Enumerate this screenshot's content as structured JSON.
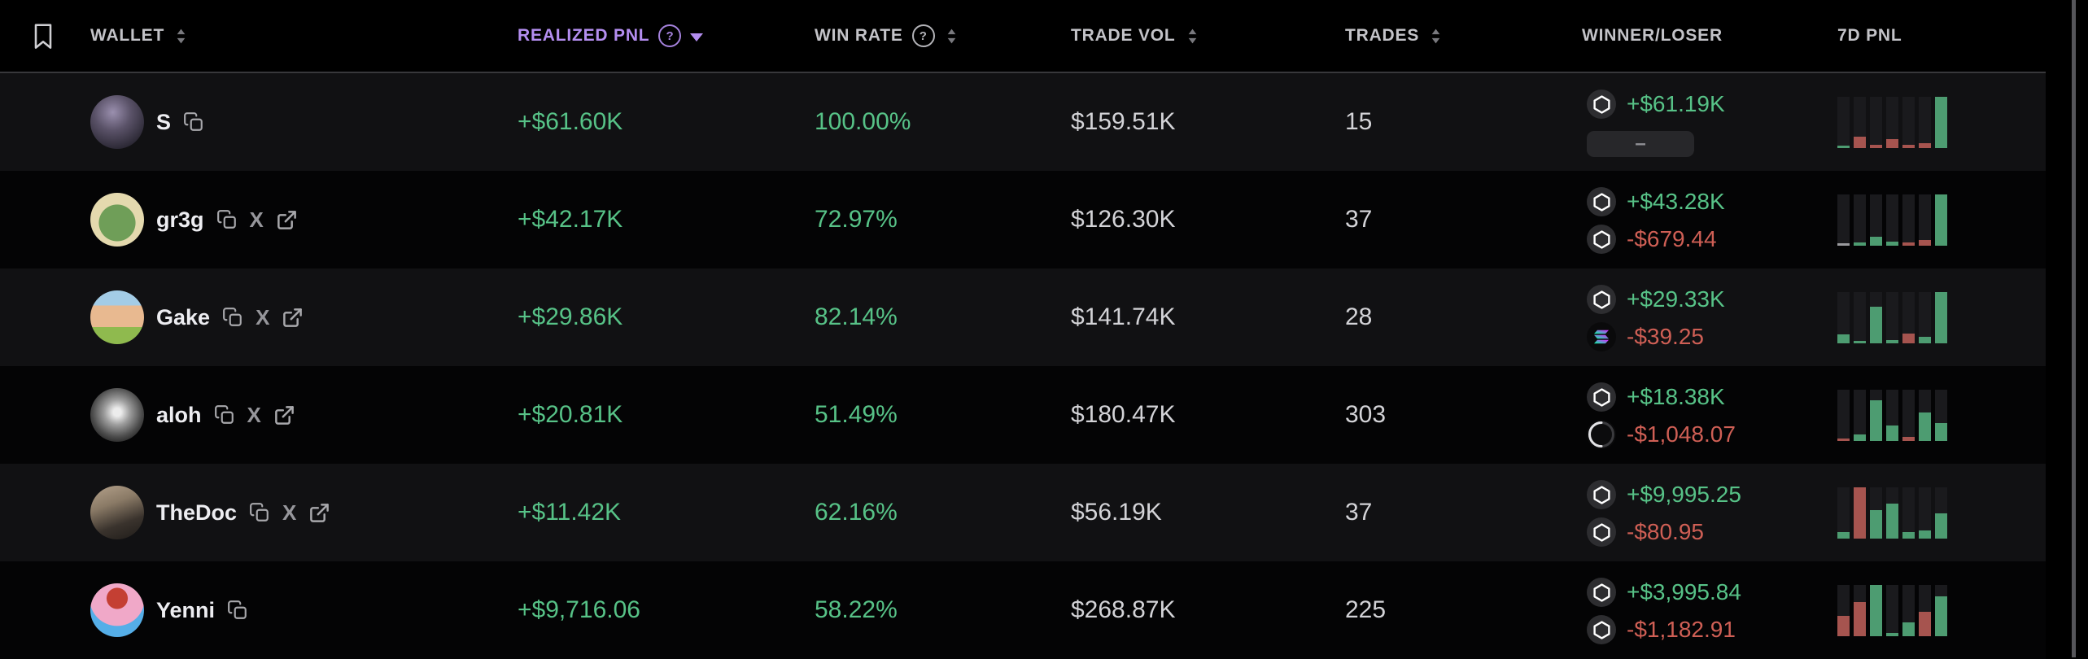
{
  "header": {
    "columns": [
      {
        "label": "WALLET",
        "sortable": true
      },
      {
        "label": "REALIZED PNL",
        "help": true,
        "sorted": "desc",
        "active": true
      },
      {
        "label": "WIN RATE",
        "help": true,
        "sortable": true
      },
      {
        "label": "TRADE VOL",
        "sortable": true
      },
      {
        "label": "TRADES",
        "sortable": true
      },
      {
        "label": "WINNER/LOSER"
      },
      {
        "label": "7D PNL"
      }
    ],
    "accent_color": "#b48ef0"
  },
  "misc": {
    "no_loser": "–"
  },
  "colors": {
    "pnl_green": "#57c287",
    "pnl_red": "#cf5f55",
    "bar_green": "#4d9c71",
    "bar_red": "#a6544f",
    "bar_neutral": "#9a9a9e",
    "sort_accent_purple": "#b48ef0",
    "row_alt_bg": "#111113",
    "row_bg": "#040405"
  },
  "rows": [
    {
      "name": "S",
      "links": {
        "copy": true,
        "twitter": false,
        "external": false
      },
      "realized_pnl": "+$61.60K",
      "win_rate": "100.00%",
      "trade_vol": "$159.51K",
      "trades": "15",
      "winner": {
        "icon": "hex",
        "value": "+$61.19K"
      },
      "loser": null,
      "chart": {
        "bars": [
          {
            "h": 0.05,
            "c": "green"
          },
          {
            "h": 0.22,
            "c": "red"
          },
          {
            "h": 0.06,
            "c": "red"
          },
          {
            "h": 0.18,
            "c": "red"
          },
          {
            "h": 0.07,
            "c": "red"
          },
          {
            "h": 0.09,
            "c": "red"
          },
          {
            "h": 1.0,
            "c": "green"
          }
        ]
      }
    },
    {
      "name": "gr3g",
      "links": {
        "copy": true,
        "twitter": true,
        "external": true
      },
      "realized_pnl": "+$42.17K",
      "win_rate": "72.97%",
      "trade_vol": "$126.30K",
      "trades": "37",
      "winner": {
        "icon": "hex",
        "value": "+$43.28K"
      },
      "loser": {
        "icon": "hex",
        "value": "-$679.44"
      },
      "chart": {
        "bars": [
          {
            "h": 0.05,
            "c": "neutral"
          },
          {
            "h": 0.07,
            "c": "green"
          },
          {
            "h": 0.17,
            "c": "green"
          },
          {
            "h": 0.08,
            "c": "green"
          },
          {
            "h": 0.06,
            "c": "red"
          },
          {
            "h": 0.11,
            "c": "red"
          },
          {
            "h": 1.0,
            "c": "green"
          }
        ]
      }
    },
    {
      "name": "Gake",
      "links": {
        "copy": true,
        "twitter": true,
        "external": true
      },
      "realized_pnl": "+$29.86K",
      "win_rate": "82.14%",
      "trade_vol": "$141.74K",
      "trades": "28",
      "winner": {
        "icon": "hex",
        "value": "+$29.33K"
      },
      "loser": {
        "icon": "sol",
        "value": "-$39.25"
      },
      "chart": {
        "bars": [
          {
            "h": 0.17,
            "c": "green"
          },
          {
            "h": 0.05,
            "c": "green"
          },
          {
            "h": 0.72,
            "c": "green"
          },
          {
            "h": 0.07,
            "c": "green"
          },
          {
            "h": 0.19,
            "c": "red"
          },
          {
            "h": 0.12,
            "c": "green"
          },
          {
            "h": 1.0,
            "c": "green"
          }
        ]
      }
    },
    {
      "name": "aloh",
      "links": {
        "copy": true,
        "twitter": true,
        "external": true
      },
      "realized_pnl": "+$20.81K",
      "win_rate": "51.49%",
      "trade_vol": "$180.47K",
      "trades": "303",
      "winner": {
        "icon": "hex",
        "value": "+$18.38K"
      },
      "loser": {
        "icon": "moon",
        "value": "-$1,048.07"
      },
      "chart": {
        "bars": [
          {
            "h": 0.04,
            "c": "red"
          },
          {
            "h": 0.12,
            "c": "green"
          },
          {
            "h": 0.8,
            "c": "green"
          },
          {
            "h": 0.3,
            "c": "green"
          },
          {
            "h": 0.08,
            "c": "red"
          },
          {
            "h": 0.55,
            "c": "green"
          },
          {
            "h": 0.35,
            "c": "green"
          }
        ]
      }
    },
    {
      "name": "TheDoc",
      "links": {
        "copy": true,
        "twitter": true,
        "external": true
      },
      "realized_pnl": "+$11.42K",
      "win_rate": "62.16%",
      "trade_vol": "$56.19K",
      "trades": "37",
      "winner": {
        "icon": "hex",
        "value": "+$9,995.25"
      },
      "loser": {
        "icon": "hex",
        "value": "-$80.95"
      },
      "chart": {
        "bars": [
          {
            "h": 0.12,
            "c": "green"
          },
          {
            "h": 1.0,
            "c": "red"
          },
          {
            "h": 0.55,
            "c": "green"
          },
          {
            "h": 0.68,
            "c": "green"
          },
          {
            "h": 0.12,
            "c": "green"
          },
          {
            "h": 0.16,
            "c": "green"
          },
          {
            "h": 0.5,
            "c": "green"
          }
        ]
      }
    },
    {
      "name": "Yenni",
      "links": {
        "copy": true,
        "twitter": false,
        "external": false
      },
      "realized_pnl": "+$9,716.06",
      "win_rate": "58.22%",
      "trade_vol": "$268.87K",
      "trades": "225",
      "winner": {
        "icon": "hex",
        "value": "+$3,995.84"
      },
      "loser": {
        "icon": "hex",
        "value": "-$1,182.91"
      },
      "chart": {
        "bars": [
          {
            "h": 0.4,
            "c": "red"
          },
          {
            "h": 0.66,
            "c": "red"
          },
          {
            "h": 1.0,
            "c": "green"
          },
          {
            "h": 0.07,
            "c": "green"
          },
          {
            "h": 0.27,
            "c": "green"
          },
          {
            "h": 0.48,
            "c": "red"
          },
          {
            "h": 0.78,
            "c": "green"
          }
        ]
      }
    }
  ]
}
